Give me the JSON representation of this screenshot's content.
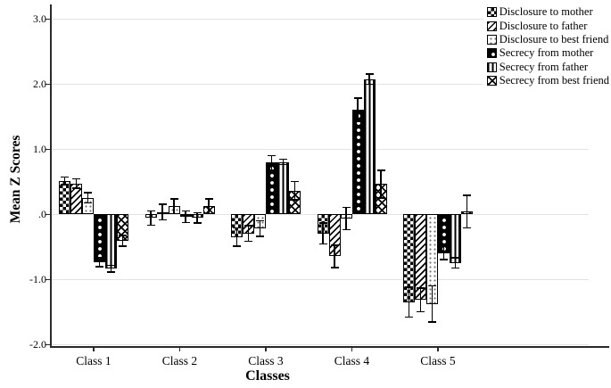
{
  "chart_data": {
    "type": "bar",
    "title": "",
    "xlabel": "Classes",
    "ylabel": "Mean Z Scores",
    "ylim": [
      -2.0,
      3.0
    ],
    "grid": true,
    "legend_position": "top-right",
    "error_bars": true,
    "categories": [
      "Class 1",
      "Class 2",
      "Class 3",
      "Class 4",
      "Class 5"
    ],
    "y_ticks": [
      {
        "label": "3.0",
        "value": 3.0
      },
      {
        "label": "2.0",
        "value": 2.0
      },
      {
        "label": "1.0",
        "value": 1.0
      },
      {
        "label": ".0",
        "value": 0.0
      },
      {
        "label": "-1.0",
        "value": -1.0
      },
      {
        "label": "-2.0",
        "value": -2.0
      }
    ],
    "series": [
      {
        "name": "Disclosure to mother",
        "pattern": "checkerboard",
        "values": [
          0.51,
          -0.06,
          -0.35,
          -0.3,
          -1.35
        ],
        "errors": [
          0.06,
          0.11,
          0.14,
          0.16,
          0.23
        ]
      },
      {
        "name": "Disclosure to father",
        "pattern": "diagonal-stripes",
        "values": [
          0.47,
          0.03,
          -0.3,
          -0.65,
          -1.32
        ],
        "errors": [
          0.07,
          0.12,
          0.12,
          0.17,
          0.18
        ]
      },
      {
        "name": "Disclosure to best friend",
        "pattern": "dots",
        "values": [
          0.25,
          0.12,
          -0.22,
          -0.07,
          -1.38
        ],
        "errors": [
          0.08,
          0.11,
          0.12,
          0.17,
          0.28
        ]
      },
      {
        "name": "Secrecy from mother",
        "pattern": "white-squares-on-black",
        "values": [
          -0.74,
          -0.04,
          0.79,
          1.6,
          -0.6
        ],
        "errors": [
          0.07,
          0.09,
          0.11,
          0.18,
          0.1
        ]
      },
      {
        "name": "Secrecy from father",
        "pattern": "vertical-stripes",
        "values": [
          -0.84,
          -0.06,
          0.8,
          2.07,
          -0.75
        ],
        "errors": [
          0.05,
          0.08,
          0.04,
          0.08,
          0.08
        ]
      },
      {
        "name": "Secrecy from best friend",
        "pattern": "diamond-crosshatch",
        "values": [
          -0.41,
          0.12,
          0.36,
          0.46,
          0.04
        ],
        "errors": [
          0.08,
          0.11,
          0.14,
          0.21,
          0.25
        ]
      }
    ],
    "colors": {
      "bar_outline": "#000000",
      "gridline": "#e3e3e3",
      "axis": "#2a2a2a",
      "background": "#ffffff"
    }
  }
}
